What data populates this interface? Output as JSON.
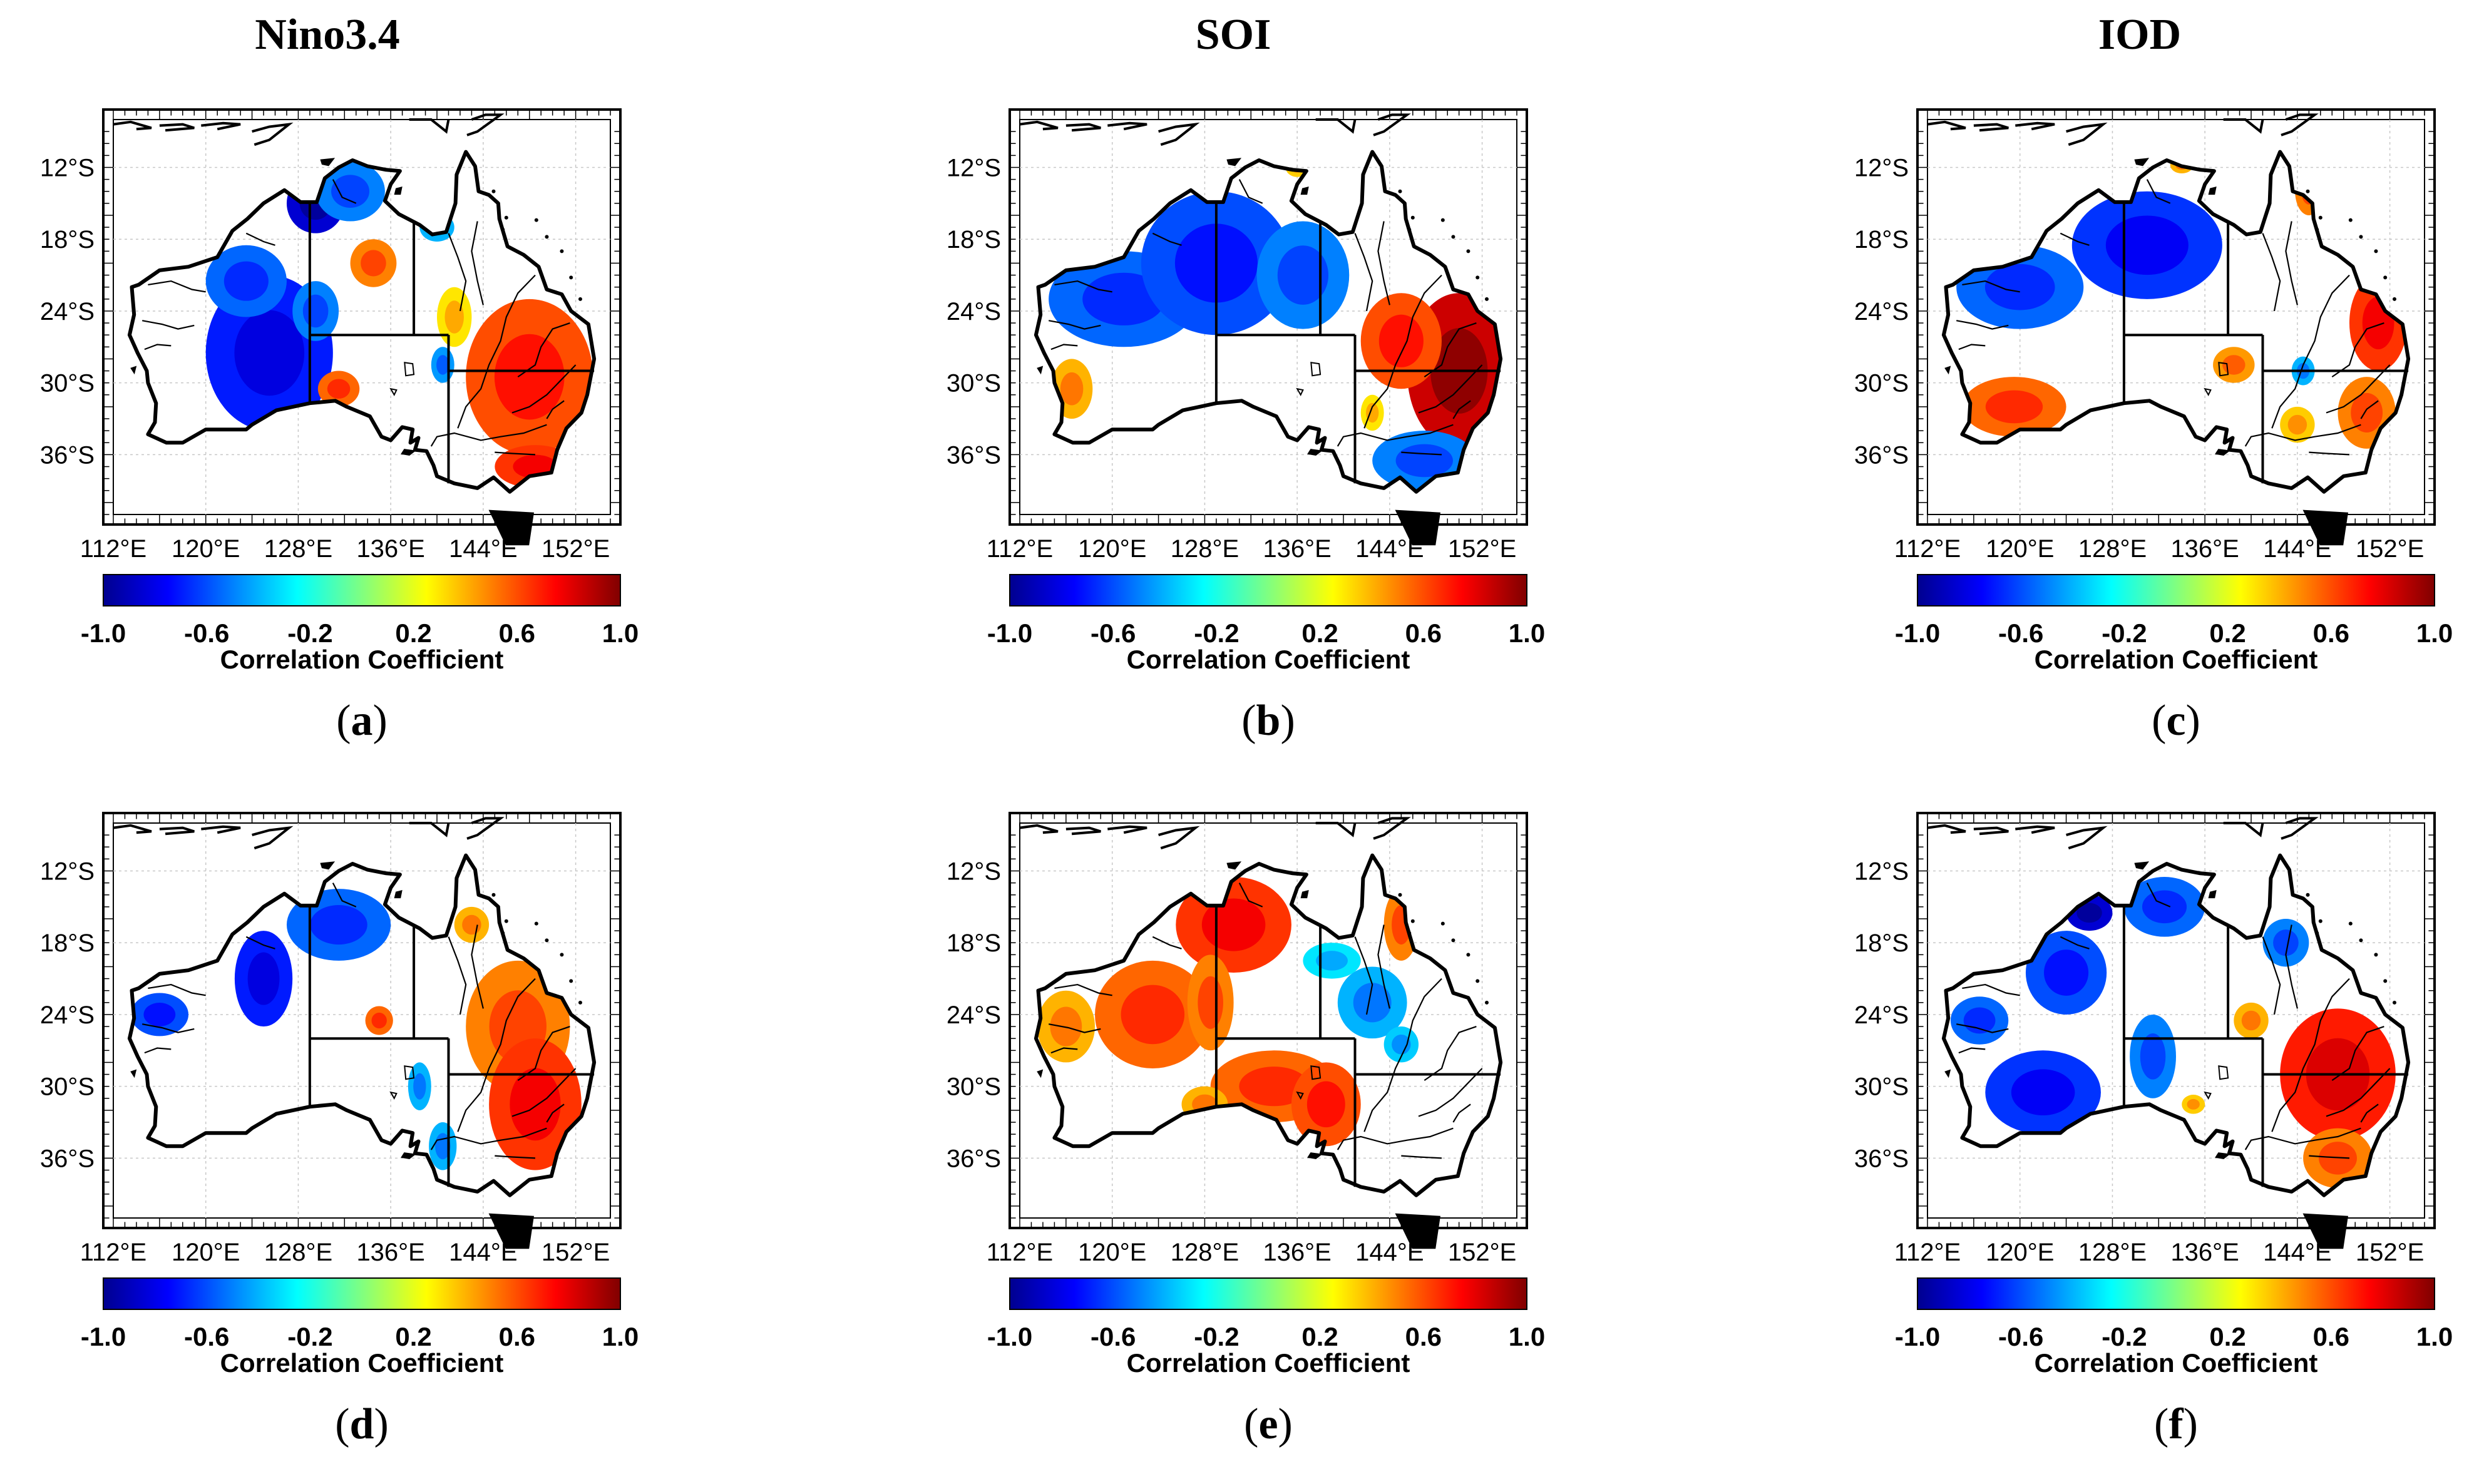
{
  "figure": {
    "column_titles": [
      "Nino3.4",
      "SOI",
      "IOD"
    ],
    "x_ticks": [
      "112°E",
      "120°E",
      "128°E",
      "136°E",
      "144°E",
      "152°E"
    ],
    "y_ticks": [
      "12°S",
      "18°S",
      "24°S",
      "30°S",
      "36°S"
    ],
    "colorbar": {
      "ticks": [
        "-1.0",
        "-0.6",
        "-0.2",
        "0.2",
        "0.6",
        "1.0"
      ],
      "label": "Correlation Coefficient",
      "colors": [
        "#00008f",
        "#0000ff",
        "#0080ff",
        "#00ffff",
        "#80ff80",
        "#ffff00",
        "#ff8000",
        "#ff0000",
        "#800000"
      ]
    },
    "panels": [
      {
        "id": "a",
        "label_open": "(",
        "label_letter": "a",
        "label_close": ")",
        "index": "Nino3.4",
        "blobs": [
          {
            "lon": 125.5,
            "lat": -27.5,
            "rlon": 5.5,
            "rlat": 6.5,
            "r": -0.7
          },
          {
            "lon": 123.5,
            "lat": -21.5,
            "rlon": 3.5,
            "rlat": 3.0,
            "r": -0.55
          },
          {
            "lon": 129.5,
            "lat": -15.0,
            "rlon": 2.5,
            "rlat": 2.5,
            "r": -0.85
          },
          {
            "lon": 132.5,
            "lat": -14.0,
            "rlon": 3.0,
            "rlat": 2.5,
            "r": -0.5
          },
          {
            "lon": 129.5,
            "lat": -24.0,
            "rlon": 2.0,
            "rlat": 2.5,
            "r": -0.5
          },
          {
            "lon": 134.5,
            "lat": -20.0,
            "rlon": 2.0,
            "rlat": 2.0,
            "r": 0.5
          },
          {
            "lon": 131.5,
            "lat": -30.5,
            "rlon": 1.8,
            "rlat": 1.5,
            "r": 0.55
          },
          {
            "lon": 148.0,
            "lat": -29.5,
            "rlon": 5.5,
            "rlat": 6.5,
            "r": 0.6
          },
          {
            "lon": 148.5,
            "lat": -37.0,
            "rlon": 3.5,
            "rlat": 1.8,
            "r": 0.65
          },
          {
            "lon": 141.5,
            "lat": -24.5,
            "rlon": 1.5,
            "rlat": 2.5,
            "r": 0.3
          },
          {
            "lon": 140.5,
            "lat": -28.5,
            "rlon": 1.0,
            "rlat": 1.5,
            "r": -0.45
          },
          {
            "lon": 140.0,
            "lat": -17.0,
            "rlon": 1.5,
            "rlat": 1.2,
            "r": -0.4
          }
        ]
      },
      {
        "id": "b",
        "label_open": "(",
        "label_letter": "b",
        "label_close": ")",
        "index": "SOI",
        "blobs": [
          {
            "lon": 121.0,
            "lat": -23.0,
            "rlon": 6.5,
            "rlat": 4.0,
            "r": -0.55
          },
          {
            "lon": 129.0,
            "lat": -20.0,
            "rlon": 6.5,
            "rlat": 6.0,
            "r": -0.6
          },
          {
            "lon": 136.5,
            "lat": -21.0,
            "rlon": 4.0,
            "rlat": 4.5,
            "r": -0.5
          },
          {
            "lon": 150.0,
            "lat": -29.0,
            "rlon": 4.5,
            "rlat": 6.5,
            "r": 0.85
          },
          {
            "lon": 145.0,
            "lat": -26.5,
            "rlon": 3.5,
            "rlat": 4.0,
            "r": 0.6
          },
          {
            "lon": 147.0,
            "lat": -36.5,
            "rlon": 4.5,
            "rlat": 2.5,
            "r": -0.5
          },
          {
            "lon": 116.5,
            "lat": -30.5,
            "rlon": 1.8,
            "rlat": 2.5,
            "r": 0.4
          },
          {
            "lon": 142.5,
            "lat": -32.5,
            "rlon": 1.0,
            "rlat": 1.5,
            "r": 0.3
          },
          {
            "lon": 136.0,
            "lat": -12.0,
            "rlon": 1.0,
            "rlat": 0.8,
            "r": 0.35
          }
        ]
      },
      {
        "id": "c",
        "label_open": "(",
        "label_letter": "c",
        "label_close": ")",
        "index": "IOD",
        "blobs": [
          {
            "lon": 120.0,
            "lat": -22.0,
            "rlon": 5.5,
            "rlat": 3.5,
            "r": -0.55
          },
          {
            "lon": 131.0,
            "lat": -18.5,
            "rlon": 6.5,
            "rlat": 4.5,
            "r": -0.65
          },
          {
            "lon": 119.5,
            "lat": -32.0,
            "rlon": 4.5,
            "rlat": 2.5,
            "r": 0.55
          },
          {
            "lon": 151.0,
            "lat": -25.0,
            "rlon": 2.5,
            "rlat": 4.0,
            "r": 0.65
          },
          {
            "lon": 150.0,
            "lat": -32.5,
            "rlon": 2.5,
            "rlat": 3.0,
            "r": 0.5
          },
          {
            "lon": 145.0,
            "lat": -14.0,
            "rlon": 1.2,
            "rlat": 2.0,
            "r": 0.5
          },
          {
            "lon": 138.5,
            "lat": -28.5,
            "rlon": 1.8,
            "rlat": 1.5,
            "r": 0.45
          },
          {
            "lon": 144.0,
            "lat": -33.5,
            "rlon": 1.5,
            "rlat": 1.5,
            "r": 0.35
          },
          {
            "lon": 144.5,
            "lat": -29.0,
            "rlon": 1.0,
            "rlat": 1.2,
            "r": -0.4
          },
          {
            "lon": 134.0,
            "lat": -11.8,
            "rlon": 1.0,
            "rlat": 0.7,
            "r": 0.4
          }
        ]
      },
      {
        "id": "d",
        "label_open": "(",
        "label_letter": "d",
        "label_close": ")",
        "index": "Nino3.4",
        "blobs": [
          {
            "lon": 116.0,
            "lat": -24.0,
            "rlon": 2.5,
            "rlat": 1.8,
            "r": -0.6
          },
          {
            "lon": 125.0,
            "lat": -21.0,
            "rlon": 2.5,
            "rlat": 4.0,
            "r": -0.7
          },
          {
            "lon": 131.5,
            "lat": -16.5,
            "rlon": 4.5,
            "rlat": 3.0,
            "r": -0.55
          },
          {
            "lon": 135.0,
            "lat": -24.5,
            "rlon": 1.2,
            "rlat": 1.2,
            "r": 0.55
          },
          {
            "lon": 147.0,
            "lat": -25.0,
            "rlon": 4.5,
            "rlat": 5.5,
            "r": 0.5
          },
          {
            "lon": 148.5,
            "lat": -31.5,
            "rlon": 4.0,
            "rlat": 5.5,
            "r": 0.65
          },
          {
            "lon": 140.5,
            "lat": -35.0,
            "rlon": 1.2,
            "rlat": 2.0,
            "r": -0.4
          },
          {
            "lon": 138.5,
            "lat": -30.0,
            "rlon": 1.0,
            "rlat": 2.0,
            "r": -0.4
          },
          {
            "lon": 143.0,
            "lat": -16.5,
            "rlon": 1.5,
            "rlat": 1.5,
            "r": 0.4
          }
        ]
      },
      {
        "id": "e",
        "label_open": "(",
        "label_letter": "e",
        "label_close": ")",
        "index": "SOI",
        "blobs": [
          {
            "lon": 116.0,
            "lat": -25.0,
            "rlon": 2.5,
            "rlat": 3.0,
            "r": 0.4
          },
          {
            "lon": 123.5,
            "lat": -24.0,
            "rlon": 5.0,
            "rlat": 4.5,
            "r": 0.55
          },
          {
            "lon": 130.5,
            "lat": -16.5,
            "rlon": 5.0,
            "rlat": 4.0,
            "r": 0.65
          },
          {
            "lon": 128.5,
            "lat": -23.0,
            "rlon": 2.0,
            "rlat": 4.0,
            "r": 0.5
          },
          {
            "lon": 134.0,
            "lat": -30.0,
            "rlon": 5.5,
            "rlat": 3.0,
            "r": 0.55
          },
          {
            "lon": 138.5,
            "lat": -31.5,
            "rlon": 3.0,
            "rlat": 3.5,
            "r": 0.6
          },
          {
            "lon": 142.5,
            "lat": -23.0,
            "rlon": 3.0,
            "rlat": 3.0,
            "r": -0.4
          },
          {
            "lon": 145.0,
            "lat": -26.5,
            "rlon": 1.5,
            "rlat": 1.5,
            "r": -0.35
          },
          {
            "lon": 145.0,
            "lat": -16.5,
            "rlon": 1.5,
            "rlat": 3.0,
            "r": 0.5
          },
          {
            "lon": 139.0,
            "lat": -19.5,
            "rlon": 2.5,
            "rlat": 1.5,
            "r": -0.3
          },
          {
            "lon": 128.0,
            "lat": -31.5,
            "rlon": 2.0,
            "rlat": 1.5,
            "r": 0.4
          }
        ]
      },
      {
        "id": "f",
        "label_open": "(",
        "label_letter": "f",
        "label_close": ")",
        "index": "IOD",
        "blobs": [
          {
            "lon": 116.5,
            "lat": -24.5,
            "rlon": 2.5,
            "rlat": 2.0,
            "r": -0.55
          },
          {
            "lon": 124.0,
            "lat": -20.5,
            "rlon": 3.5,
            "rlat": 3.5,
            "r": -0.6
          },
          {
            "lon": 126.0,
            "lat": -15.5,
            "rlon": 2.0,
            "rlat": 1.5,
            "r": -0.85
          },
          {
            "lon": 132.5,
            "lat": -15.0,
            "rlon": 3.5,
            "rlat": 2.5,
            "r": -0.55
          },
          {
            "lon": 122.0,
            "lat": -30.5,
            "rlon": 5.0,
            "rlat": 3.5,
            "r": -0.65
          },
          {
            "lon": 131.5,
            "lat": -27.5,
            "rlon": 2.0,
            "rlat": 3.5,
            "r": -0.5
          },
          {
            "lon": 147.5,
            "lat": -29.0,
            "rlon": 5.0,
            "rlat": 5.5,
            "r": 0.7
          },
          {
            "lon": 147.5,
            "lat": -36.0,
            "rlon": 3.0,
            "rlat": 2.5,
            "r": 0.5
          },
          {
            "lon": 143.0,
            "lat": -18.0,
            "rlon": 2.0,
            "rlat": 2.0,
            "r": -0.5
          },
          {
            "lon": 135.0,
            "lat": -31.5,
            "rlon": 1.0,
            "rlat": 0.8,
            "r": 0.35
          },
          {
            "lon": 140.0,
            "lat": -24.5,
            "rlon": 1.5,
            "rlat": 1.5,
            "r": 0.4
          }
        ]
      }
    ]
  }
}
